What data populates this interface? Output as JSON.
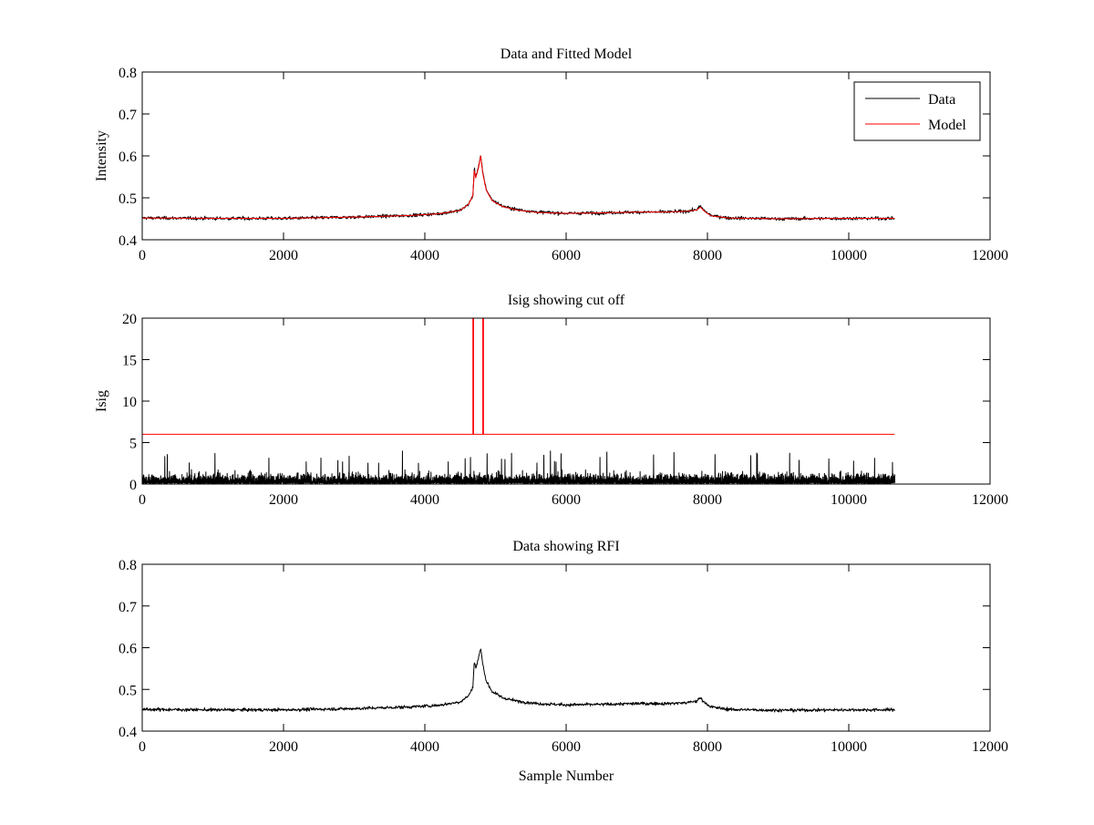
{
  "figure": {
    "background": "#ffffff",
    "colors": {
      "data": "#000000",
      "model": "#ff0000",
      "axes": "#000000"
    }
  },
  "chart_data": [
    {
      "type": "line",
      "title": "Data and Fitted Model",
      "xlabel": "",
      "ylabel": "Intensity",
      "xlim": [
        0,
        12000
      ],
      "ylim": [
        0.4,
        0.8
      ],
      "xticks": [
        0,
        2000,
        4000,
        6000,
        8000,
        10000,
        12000
      ],
      "yticks": [
        0.4,
        0.5,
        0.6,
        0.7,
        0.8
      ],
      "xtick_labels": [
        "0",
        "2000",
        "4000",
        "6000",
        "8000",
        "10000",
        "12000"
      ],
      "ytick_labels": [
        "0.4",
        "0.5",
        "0.6",
        "0.7",
        "0.8"
      ],
      "grid": false,
      "legend": {
        "position": "top-right",
        "entries": [
          "Data",
          "Model"
        ]
      },
      "series": [
        {
          "name": "Data",
          "color": "#000000",
          "noise": 0.004,
          "x": [
            0,
            1000,
            2000,
            3000,
            3800,
            4200,
            4500,
            4620,
            4680,
            4700,
            4720,
            4760,
            4790,
            4820,
            4870,
            4950,
            5100,
            5300,
            5600,
            6000,
            6500,
            7000,
            7400,
            7700,
            7850,
            7900,
            7950,
            8050,
            8300,
            9000,
            10000,
            10650
          ],
          "y": [
            0.452,
            0.451,
            0.451,
            0.454,
            0.458,
            0.462,
            0.47,
            0.485,
            0.505,
            0.57,
            0.55,
            0.575,
            0.6,
            0.56,
            0.52,
            0.495,
            0.48,
            0.472,
            0.466,
            0.463,
            0.464,
            0.466,
            0.466,
            0.468,
            0.472,
            0.48,
            0.47,
            0.458,
            0.452,
            0.45,
            0.451,
            0.451
          ]
        },
        {
          "name": "Model",
          "color": "#ff0000",
          "noise": 0,
          "x": [
            0,
            1000,
            2000,
            3000,
            3800,
            4200,
            4500,
            4620,
            4680,
            4700,
            4720,
            4760,
            4790,
            4820,
            4870,
            4950,
            5100,
            5300,
            5600,
            6000,
            6500,
            7000,
            7400,
            7700,
            7850,
            7900,
            7950,
            8050,
            8300,
            9000,
            10000,
            10650
          ],
          "y": [
            0.452,
            0.451,
            0.451,
            0.454,
            0.458,
            0.462,
            0.47,
            0.485,
            0.505,
            0.565,
            0.548,
            0.572,
            0.6,
            0.558,
            0.518,
            0.494,
            0.479,
            0.471,
            0.465,
            0.463,
            0.464,
            0.466,
            0.466,
            0.468,
            0.471,
            0.478,
            0.469,
            0.457,
            0.452,
            0.45,
            0.451,
            0.451
          ]
        }
      ]
    },
    {
      "type": "line",
      "title": "Isig showing cut off",
      "xlabel": "",
      "ylabel": "Isig",
      "xlim": [
        0,
        12000
      ],
      "ylim": [
        0,
        20
      ],
      "xticks": [
        0,
        2000,
        4000,
        6000,
        8000,
        10000,
        12000
      ],
      "yticks": [
        0,
        5,
        10,
        15,
        20
      ],
      "xtick_labels": [
        "0",
        "2000",
        "4000",
        "6000",
        "8000",
        "10000",
        "12000"
      ],
      "ytick_labels": [
        "0",
        "5",
        "10",
        "15",
        "20"
      ],
      "grid": false,
      "series": [
        {
          "color": "#ff0000",
          "x": [
            0,
            4680,
            4680,
            4690,
            4690,
            4820,
            4820,
            4830,
            4830,
            10650
          ],
          "y": [
            6,
            6,
            20,
            20,
            6,
            6,
            20,
            20,
            6,
            6
          ]
        },
        {
          "color": "#000000",
          "style": "dense-noise",
          "x_range": [
            0,
            10650
          ],
          "mean": 0.8,
          "max": 4
        }
      ]
    },
    {
      "type": "line",
      "title": "Data showing RFI",
      "xlabel": "Sample Number",
      "ylabel": "",
      "xlim": [
        0,
        12000
      ],
      "ylim": [
        0.4,
        0.8
      ],
      "xticks": [
        0,
        2000,
        4000,
        6000,
        8000,
        10000,
        12000
      ],
      "yticks": [
        0.4,
        0.5,
        0.6,
        0.7,
        0.8
      ],
      "xtick_labels": [
        "0",
        "2000",
        "4000",
        "6000",
        "8000",
        "10000",
        "12000"
      ],
      "ytick_labels": [
        "0.4",
        "0.5",
        "0.6",
        "0.7",
        "0.8"
      ],
      "grid": false,
      "series": [
        {
          "color": "#000000",
          "noise": 0.004,
          "x": [
            0,
            1000,
            2000,
            3000,
            3800,
            4200,
            4500,
            4620,
            4680,
            4700,
            4720,
            4760,
            4790,
            4820,
            4870,
            4950,
            5100,
            5300,
            5600,
            6000,
            6500,
            7000,
            7400,
            7700,
            7850,
            7900,
            7950,
            8050,
            8300,
            9000,
            10000,
            10650
          ],
          "y": [
            0.452,
            0.451,
            0.451,
            0.454,
            0.458,
            0.462,
            0.47,
            0.485,
            0.505,
            0.57,
            0.55,
            0.575,
            0.6,
            0.56,
            0.52,
            0.495,
            0.48,
            0.472,
            0.466,
            0.463,
            0.464,
            0.466,
            0.466,
            0.468,
            0.472,
            0.48,
            0.47,
            0.458,
            0.452,
            0.45,
            0.451,
            0.451
          ]
        }
      ]
    }
  ]
}
